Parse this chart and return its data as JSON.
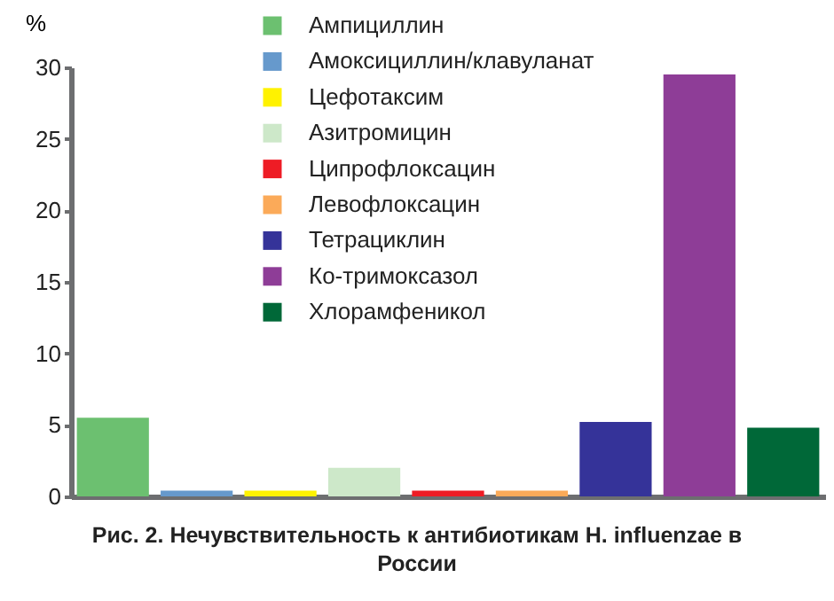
{
  "chart_data": {
    "type": "bar",
    "title": "Рис. 2. Нечувствительность к антибиотикам H. influenzae в России",
    "ylabel": "%",
    "categories": [
      null
    ],
    "series": [
      {
        "name": "Ампициллин",
        "color": "#6cc070",
        "values": [
          5.5
        ]
      },
      {
        "name": "Амоксициллин/клавуланат",
        "color": "#6699cc",
        "values": [
          0.4
        ]
      },
      {
        "name": "Цефотаксим",
        "color": "#fff200",
        "values": [
          0.4
        ]
      },
      {
        "name": "Азитромицин",
        "color": "#cde8c9",
        "values": [
          2.0
        ]
      },
      {
        "name": "Ципрофлоксацин",
        "color": "#ee1c25",
        "values": [
          0.4
        ]
      },
      {
        "name": "Левофлоксацин",
        "color": "#fbaa59",
        "values": [
          0.4
        ]
      },
      {
        "name": "Тетрациклин",
        "color": "#353399",
        "values": [
          5.2
        ]
      },
      {
        "name": "Ко-тримоксазол",
        "color": "#8e3d97",
        "values": [
          29.5
        ]
      },
      {
        "name": "Хлорамфеникол",
        "color": "#006838",
        "values": [
          4.8
        ]
      }
    ],
    "ylim": [
      0,
      30
    ],
    "yticks": [
      0,
      5,
      10,
      15,
      20,
      25,
      30
    ],
    "legend": "top",
    "tick_labels": "y"
  }
}
